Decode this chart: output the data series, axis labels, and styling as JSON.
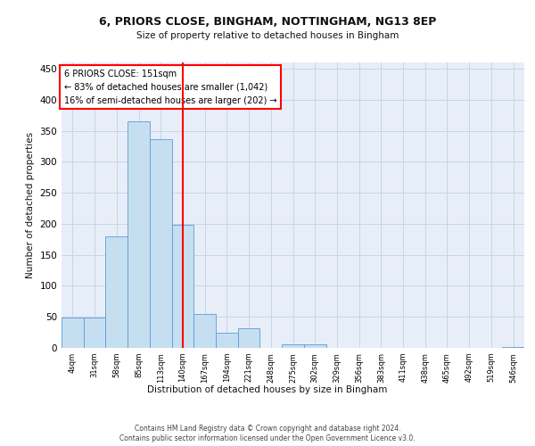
{
  "title_line1": "6, PRIORS CLOSE, BINGHAM, NOTTINGHAM, NG13 8EP",
  "title_line2": "Size of property relative to detached houses in Bingham",
  "xlabel": "Distribution of detached houses by size in Bingham",
  "ylabel": "Number of detached properties",
  "bar_labels": [
    "4sqm",
    "31sqm",
    "58sqm",
    "85sqm",
    "113sqm",
    "140sqm",
    "167sqm",
    "194sqm",
    "221sqm",
    "248sqm",
    "275sqm",
    "302sqm",
    "329sqm",
    "356sqm",
    "383sqm",
    "411sqm",
    "438sqm",
    "465sqm",
    "492sqm",
    "519sqm",
    "546sqm"
  ],
  "bar_values": [
    49,
    49,
    180,
    365,
    337,
    199,
    54,
    25,
    32,
    0,
    6,
    6,
    0,
    0,
    0,
    0,
    0,
    0,
    0,
    0,
    2
  ],
  "bar_color": "#c5dff0",
  "bar_edge_color": "#5b9bd5",
  "grid_color": "#c8d4e8",
  "background_color": "#e8eef8",
  "vline_x": 5.5,
  "vline_color": "red",
  "annotation_text": "6 PRIORS CLOSE: 151sqm\n← 83% of detached houses are smaller (1,042)\n16% of semi-detached houses are larger (202) →",
  "annotation_box_color": "white",
  "annotation_box_edge": "red",
  "ylim": [
    0,
    460
  ],
  "yticks": [
    0,
    50,
    100,
    150,
    200,
    250,
    300,
    350,
    400,
    450
  ],
  "footer_line1": "Contains HM Land Registry data © Crown copyright and database right 2024.",
  "footer_line2": "Contains public sector information licensed under the Open Government Licence v3.0."
}
